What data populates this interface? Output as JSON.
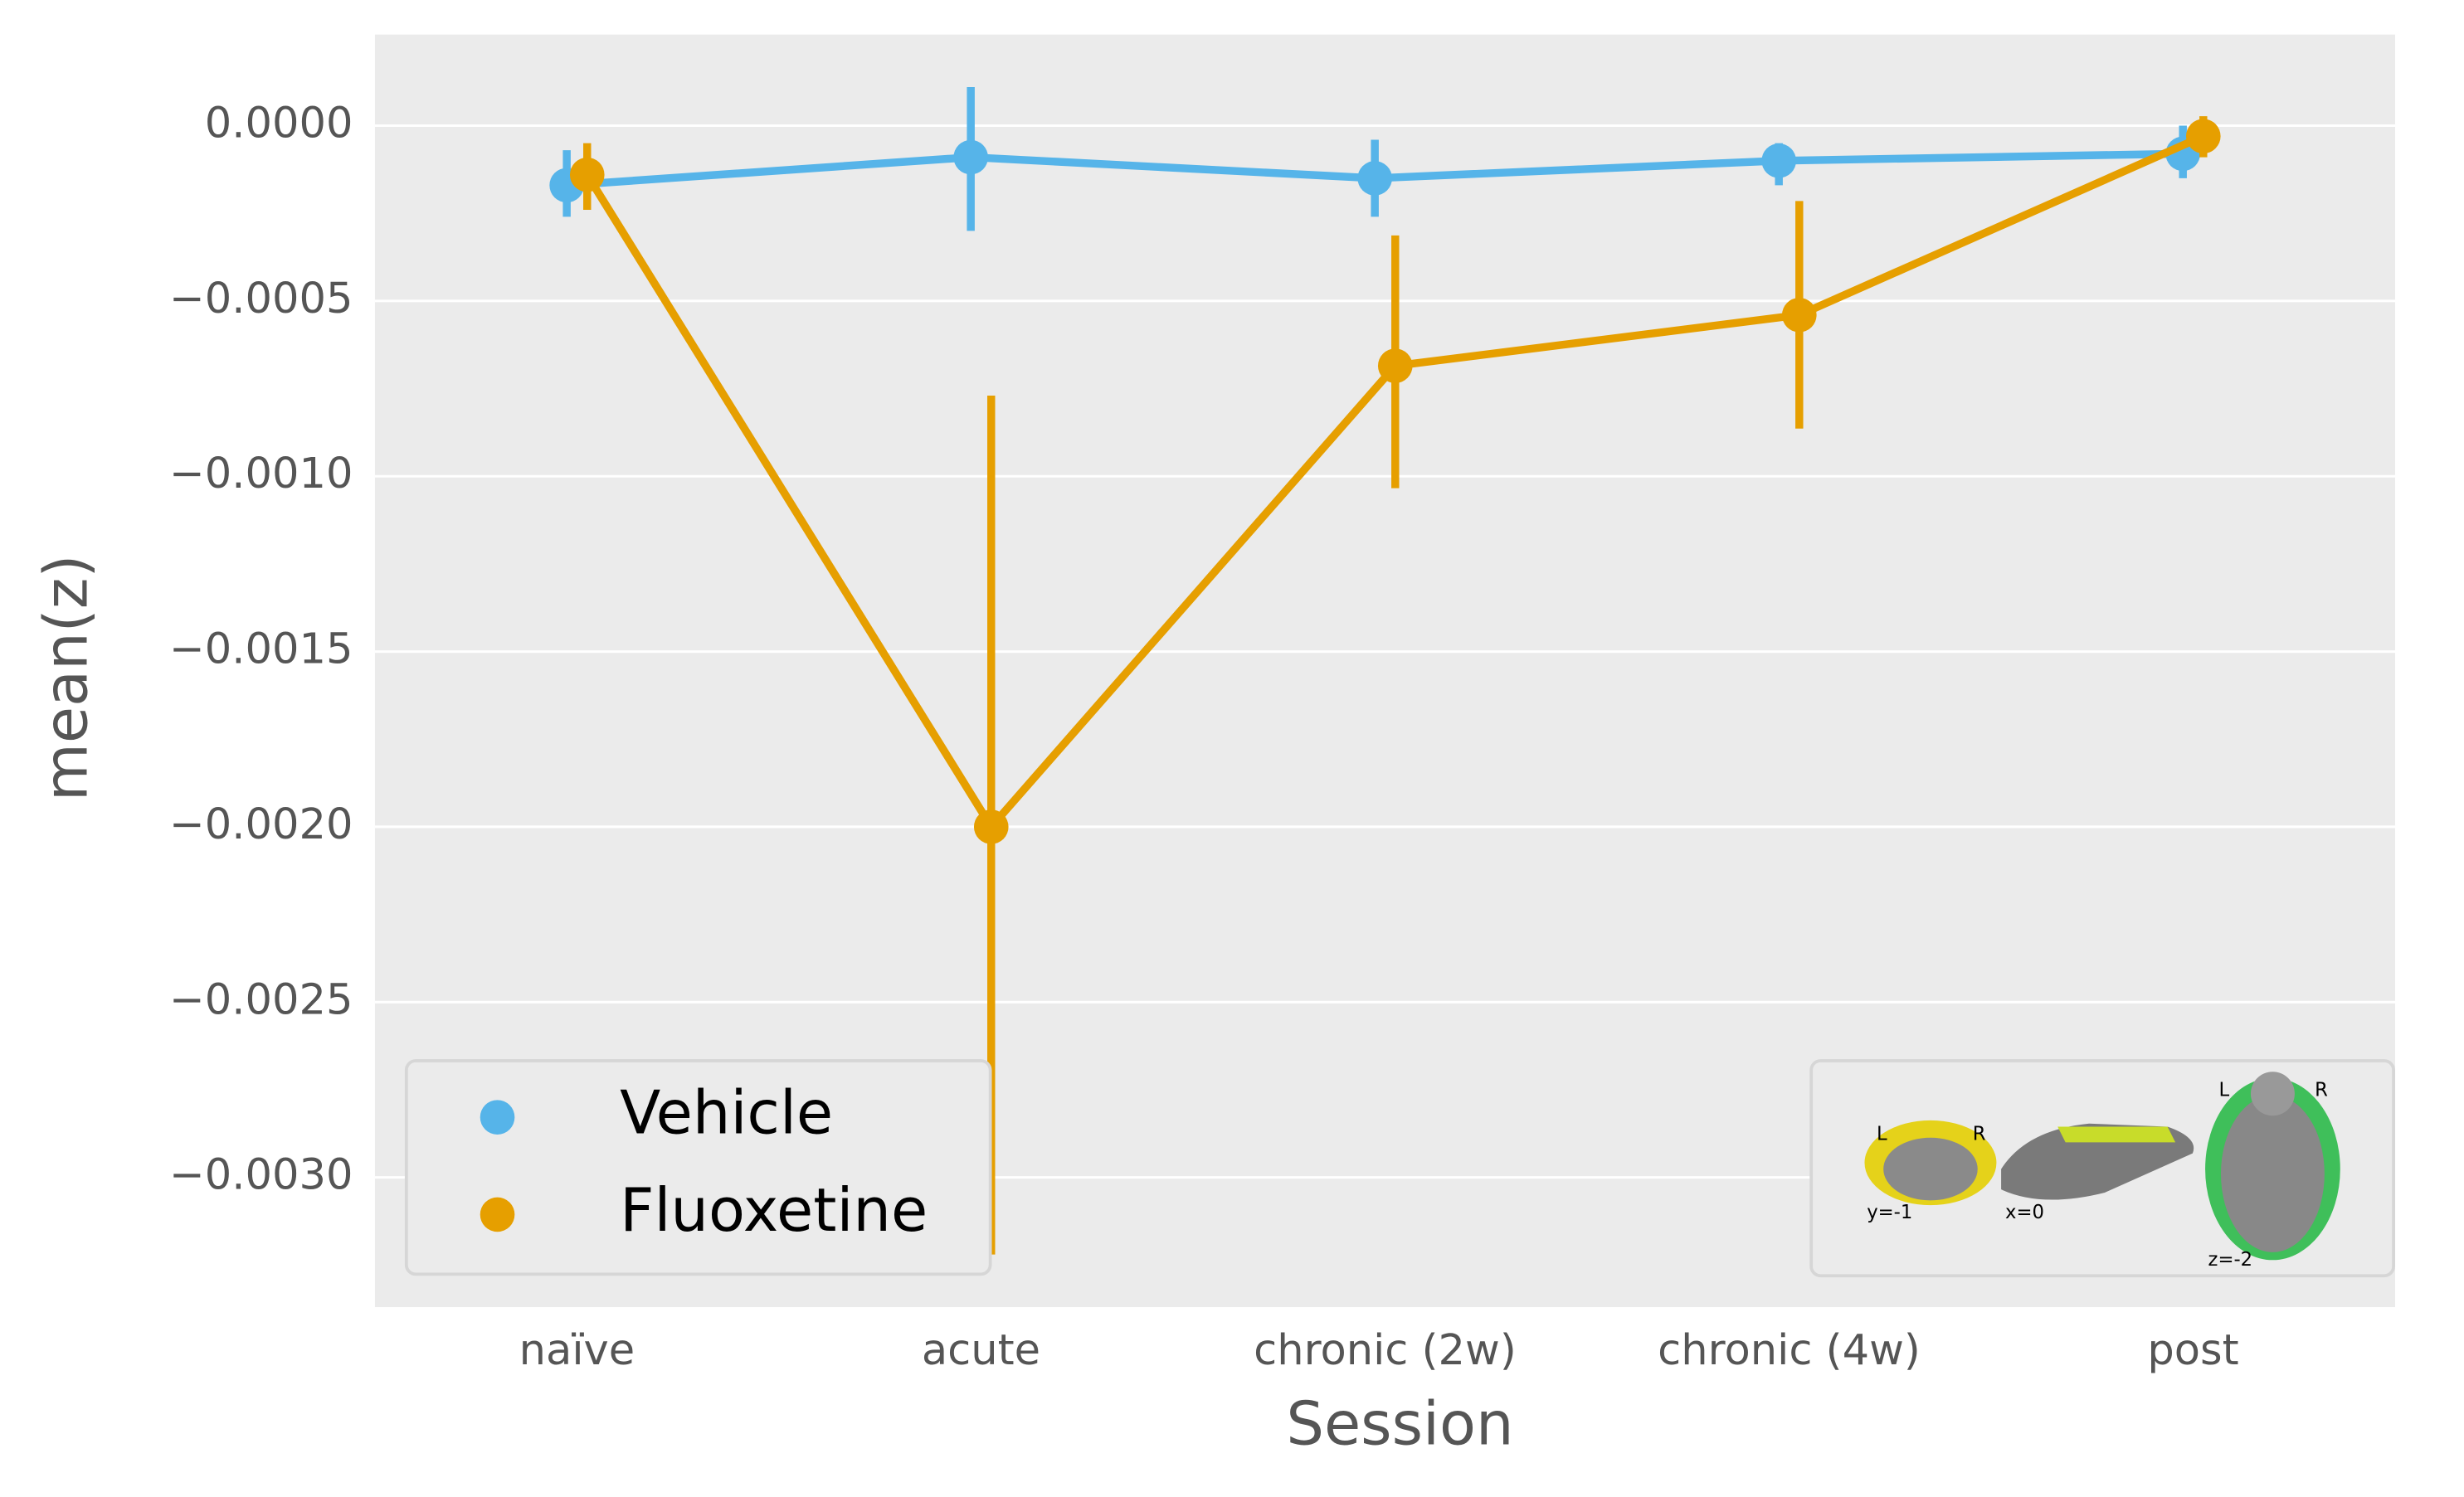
{
  "chart_data": {
    "type": "pointplot",
    "xlabel": "Session",
    "ylabel": "mean(z)",
    "categories": [
      "naïve",
      "acute",
      "chronic (2w)",
      "chronic (4w)",
      "post"
    ],
    "series": [
      {
        "name": "Vehicle",
        "color": "#56b4e9",
        "values": [
          -0.00017,
          -9e-05,
          -0.00015,
          -0.0001,
          -8e-05
        ],
        "ci_low": [
          -0.00026,
          -0.0003,
          -0.00026,
          -0.00017,
          -0.00015
        ],
        "ci_high": [
          -7e-05,
          0.00011,
          -4e-05,
          -5e-05,
          0.0
        ]
      },
      {
        "name": "Fluoxetine",
        "color": "#e69f00",
        "values": [
          -0.00014,
          -0.002,
          -0.000685,
          -0.00054,
          -3e-05
        ],
        "ci_low": [
          -0.00024,
          -0.00322,
          -0.001034,
          -0.000864,
          -9e-05
        ],
        "ci_high": [
          -5e-05,
          -0.00077,
          -0.000313,
          -0.000215,
          2.7e-05
        ]
      }
    ],
    "ylim": [
      -0.00337,
      0.00026
    ],
    "yticks": [
      {
        "value": 0.0,
        "label": "0.0000"
      },
      {
        "value": -0.0005,
        "label": "−0.0005"
      },
      {
        "value": -0.001,
        "label": "−0.0010"
      },
      {
        "value": -0.0015,
        "label": "−0.0015"
      },
      {
        "value": -0.002,
        "label": "−0.0020"
      },
      {
        "value": -0.0025,
        "label": "−0.0025"
      },
      {
        "value": -0.003,
        "label": "−0.0030"
      }
    ],
    "grid": true,
    "legend": "lower left"
  },
  "inset": {
    "labels": [
      "L",
      "R",
      "y=-1",
      "x=0",
      "L",
      "R",
      "z=-2"
    ]
  }
}
